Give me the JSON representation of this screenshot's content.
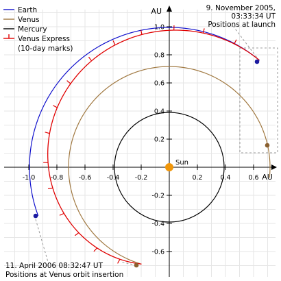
{
  "axis": {
    "y_label": "AU",
    "x_label": "AU",
    "x_ticks": [
      "-1.0",
      "-0.8",
      "-0.6",
      "-0.4",
      "-0.2",
      "0.2",
      "0.4",
      "0.6"
    ],
    "y_ticks": [
      "1.0",
      "0.8",
      "0.6",
      "0.4",
      "0.2",
      "-0.2",
      "-0.4",
      "-0.6"
    ]
  },
  "legend": {
    "items": [
      {
        "label": "Earth",
        "color": "#1010cc"
      },
      {
        "label": "Venus",
        "color": "#a07840"
      },
      {
        "label": "Mercury",
        "color": "#000000"
      },
      {
        "label": "Venus Express",
        "color": "#e00000"
      }
    ],
    "note": "(10-day marks)"
  },
  "sun": {
    "label": "Sun",
    "color": "#f0960a"
  },
  "annotations": {
    "launch": {
      "line1": "9. November 2005,",
      "line2": "03:33:34 UT",
      "line3": "Positions at launch"
    },
    "arrival": {
      "line1": "11. April 2006 08:32:47 UT",
      "line2": "Positions at Venus orbit insertion"
    }
  },
  "orbits": {
    "earth_radius_au": 1.0,
    "venus_radius_au": 0.723,
    "mercury_radius_au": 0.387
  },
  "positions": {
    "earth_launch": [
      0.66,
      0.78
    ],
    "venus_launch": [
      0.77,
      0.17
    ],
    "earth_arrival": [
      -0.98,
      -0.36
    ],
    "venus_arrival": [
      -0.23,
      -0.7
    ]
  }
}
